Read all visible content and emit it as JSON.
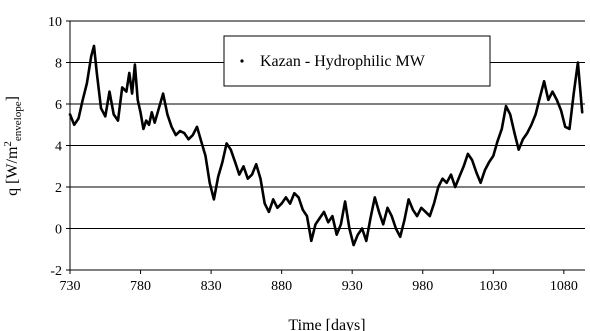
{
  "chart_data": {
    "type": "line",
    "xlabel": "Time [days]",
    "ylabel": {
      "main": "q [W/m",
      "sup": "2",
      "sub": "envelope",
      "end": "]"
    },
    "xlim": [
      730,
      1095
    ],
    "ylim": [
      -2,
      10
    ],
    "x_ticks": [
      730,
      780,
      830,
      880,
      930,
      980,
      1030,
      1080
    ],
    "y_ticks": [
      -2,
      0,
      2,
      4,
      6,
      8,
      10
    ],
    "grid": "horizontal",
    "legend_placement": "top-center",
    "line_color": "#000000",
    "series": [
      {
        "name": "Kazan - Hydrophilic MW",
        "x": [
          730,
          733,
          736,
          739,
          742,
          745,
          747,
          749,
          752,
          755,
          758,
          761,
          764,
          767,
          770,
          772,
          774,
          776,
          778,
          780,
          782,
          784,
          786,
          788,
          790,
          793,
          796,
          799,
          802,
          805,
          808,
          811,
          814,
          817,
          820,
          823,
          826,
          829,
          832,
          835,
          838,
          841,
          844,
          847,
          850,
          853,
          856,
          859,
          862,
          865,
          868,
          871,
          874,
          877,
          880,
          883,
          886,
          889,
          892,
          895,
          898,
          901,
          904,
          907,
          910,
          913,
          916,
          919,
          922,
          925,
          928,
          931,
          934,
          937,
          940,
          943,
          946,
          949,
          952,
          955,
          958,
          961,
          964,
          967,
          970,
          973,
          976,
          979,
          982,
          985,
          988,
          991,
          994,
          997,
          1000,
          1003,
          1006,
          1009,
          1012,
          1015,
          1018,
          1021,
          1024,
          1027,
          1030,
          1033,
          1036,
          1039,
          1042,
          1045,
          1048,
          1051,
          1054,
          1057,
          1060,
          1063,
          1066,
          1069,
          1072,
          1075,
          1078,
          1081,
          1084,
          1087,
          1090,
          1093
        ],
        "y": [
          5.5,
          5.0,
          5.3,
          6.2,
          7.0,
          8.3,
          8.8,
          7.5,
          5.8,
          5.4,
          6.6,
          5.5,
          5.2,
          6.8,
          6.6,
          7.5,
          6.5,
          7.9,
          6.2,
          5.6,
          4.8,
          5.2,
          5.0,
          5.6,
          5.1,
          5.8,
          6.5,
          5.5,
          4.9,
          4.5,
          4.7,
          4.6,
          4.3,
          4.5,
          4.9,
          4.2,
          3.5,
          2.2,
          1.4,
          2.5,
          3.2,
          4.1,
          3.8,
          3.2,
          2.6,
          3.0,
          2.4,
          2.6,
          3.1,
          2.4,
          1.2,
          0.8,
          1.4,
          1.0,
          1.2,
          1.5,
          1.2,
          1.7,
          1.5,
          0.9,
          0.6,
          -0.6,
          0.2,
          0.5,
          0.8,
          0.3,
          0.6,
          -0.3,
          0.2,
          1.3,
          0.0,
          -0.8,
          -0.3,
          0.0,
          -0.6,
          0.5,
          1.5,
          0.8,
          0.2,
          1.0,
          0.6,
          0.0,
          -0.4,
          0.4,
          1.4,
          0.9,
          0.6,
          1.0,
          0.8,
          0.6,
          1.2,
          2.0,
          2.4,
          2.2,
          2.6,
          2.0,
          2.5,
          3.0,
          3.6,
          3.3,
          2.7,
          2.2,
          2.8,
          3.2,
          3.5,
          4.2,
          4.8,
          5.9,
          5.5,
          4.6,
          3.8,
          4.3,
          4.6,
          5.0,
          5.5,
          6.3,
          7.1,
          6.2,
          6.6,
          6.2,
          5.7,
          4.9,
          4.8,
          6.5,
          8.0,
          5.6
        ]
      }
    ]
  }
}
